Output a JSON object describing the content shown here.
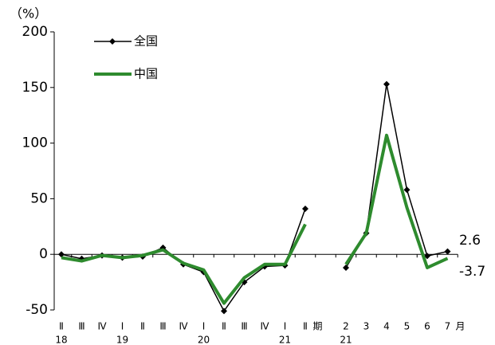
{
  "chart_data": {
    "type": "line",
    "y_unit": "（%）",
    "categories": [
      "Ⅱ",
      "Ⅲ",
      "Ⅳ",
      "Ⅰ",
      "Ⅱ",
      "Ⅲ",
      "Ⅳ",
      "Ⅰ",
      "Ⅱ",
      "Ⅲ",
      "Ⅳ",
      "Ⅰ",
      "Ⅱ",
      null,
      "2",
      "3",
      "4",
      "5",
      "6",
      "7"
    ],
    "years": [
      "18",
      null,
      null,
      "19",
      null,
      null,
      null,
      "20",
      null,
      null,
      null,
      "21",
      null,
      null,
      "21",
      null,
      null,
      null,
      null,
      null
    ],
    "quarter_unit": "期",
    "month_unit": "月",
    "series": [
      {
        "name": "全国",
        "color": "#000000",
        "marker": "diamond",
        "width": 1.5,
        "values": [
          0,
          -4,
          -1,
          -3,
          -2,
          6,
          -9,
          -16,
          -51,
          -25,
          -11,
          -10,
          41,
          null,
          -12,
          19,
          153,
          58,
          -1.5,
          2.6
        ]
      },
      {
        "name": "中国",
        "color": "#2e8b2e",
        "marker": "none",
        "width": 4,
        "values": [
          -3,
          -6,
          -1,
          -3,
          -1,
          4,
          -8,
          -14,
          -44,
          -21,
          -9,
          -9,
          27,
          null,
          -9,
          19,
          107,
          42,
          -12,
          -3.7
        ]
      }
    ],
    "end_labels": true,
    "ylim": [
      -50,
      200
    ],
    "yticks": [
      200,
      150,
      100,
      50,
      0,
      -50
    ],
    "grid": false
  }
}
